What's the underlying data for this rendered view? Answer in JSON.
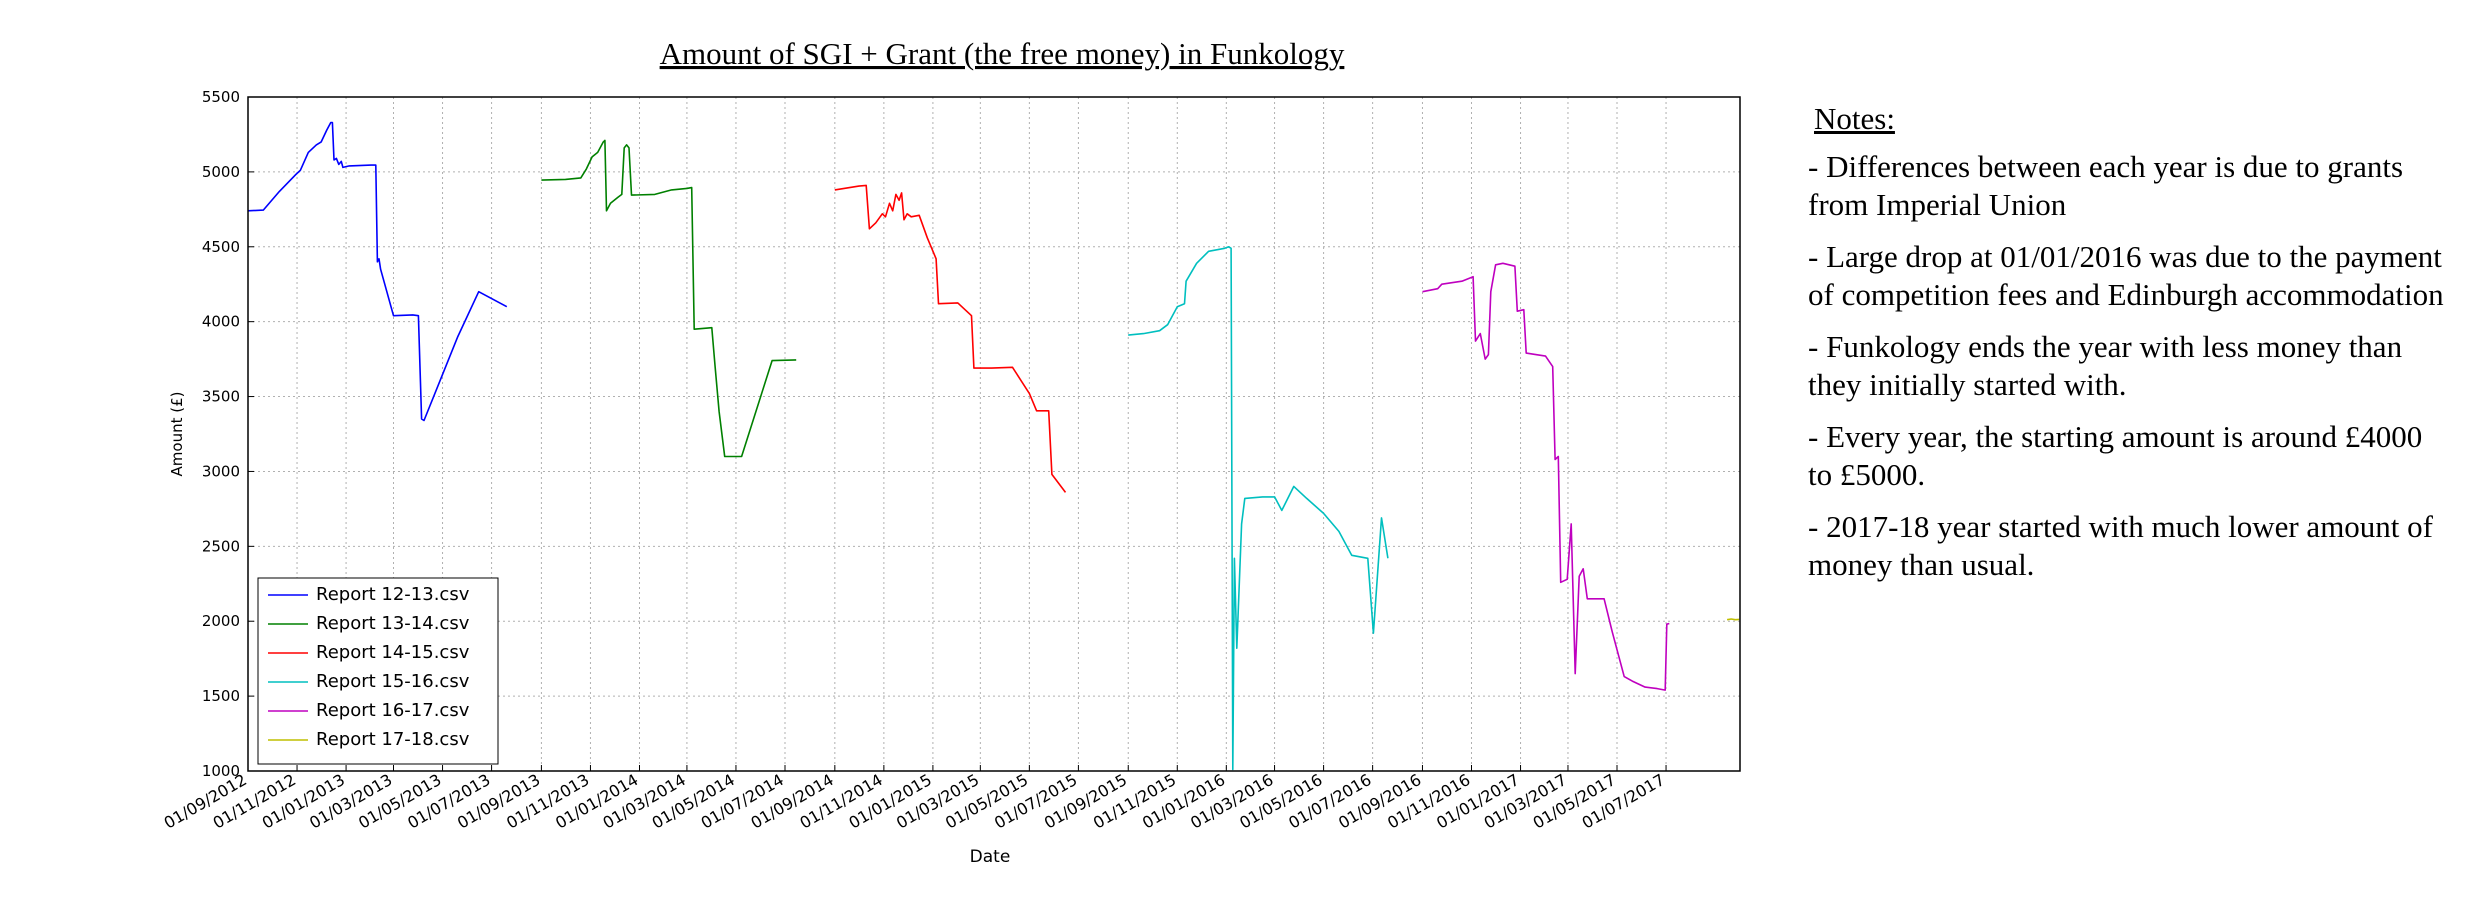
{
  "notes": {
    "heading": "Notes:",
    "items": [
      "- Differences between each year is due to grants from Imperial Union",
      "- Large drop at 01/01/2016 was due to the payment of competition fees and Edinburgh accommodation",
      "- Funkology ends the year with less money than they initially started with.",
      "- Every year, the starting amount is around £4000 to £5000.",
      "- 2017-18 year started with much lower amount of money than usual."
    ]
  },
  "chart_data": {
    "type": "line",
    "title": "Amount of SGI + Grant (the free money) in Funkology",
    "xlabel": "Date",
    "ylabel": "Amount (£)",
    "ylim": [
      1000,
      5500
    ],
    "yticks": [
      1000,
      1500,
      2000,
      2500,
      3000,
      3500,
      4000,
      4500,
      5000,
      5500
    ],
    "xlim": [
      "2012-09-01",
      "2017-10-01"
    ],
    "xticks": [
      {
        "date": "2012-09-01",
        "label": "01/09/2012"
      },
      {
        "date": "2012-11-01",
        "label": "01/11/2012"
      },
      {
        "date": "2013-01-01",
        "label": "01/01/2013"
      },
      {
        "date": "2013-03-01",
        "label": "01/03/2013"
      },
      {
        "date": "2013-05-01",
        "label": "01/05/2013"
      },
      {
        "date": "2013-07-01",
        "label": "01/07/2013"
      },
      {
        "date": "2013-09-01",
        "label": "01/09/2013"
      },
      {
        "date": "2013-11-01",
        "label": "01/11/2013"
      },
      {
        "date": "2014-01-01",
        "label": "01/01/2014"
      },
      {
        "date": "2014-03-01",
        "label": "01/03/2014"
      },
      {
        "date": "2014-05-01",
        "label": "01/05/2014"
      },
      {
        "date": "2014-07-01",
        "label": "01/07/2014"
      },
      {
        "date": "2014-09-01",
        "label": "01/09/2014"
      },
      {
        "date": "2014-11-01",
        "label": "01/11/2014"
      },
      {
        "date": "2015-01-01",
        "label": "01/01/2015"
      },
      {
        "date": "2015-03-01",
        "label": "01/03/2015"
      },
      {
        "date": "2015-05-01",
        "label": "01/05/2015"
      },
      {
        "date": "2015-07-01",
        "label": "01/07/2015"
      },
      {
        "date": "2015-09-01",
        "label": "01/09/2015"
      },
      {
        "date": "2015-11-01",
        "label": "01/11/2015"
      },
      {
        "date": "2016-01-01",
        "label": "01/01/2016"
      },
      {
        "date": "2016-03-01",
        "label": "01/03/2016"
      },
      {
        "date": "2016-05-01",
        "label": "01/05/2016"
      },
      {
        "date": "2016-07-01",
        "label": "01/07/2016"
      },
      {
        "date": "2016-09-01",
        "label": "01/09/2016"
      },
      {
        "date": "2016-11-01",
        "label": "01/11/2016"
      },
      {
        "date": "2017-01-01",
        "label": "01/01/2017"
      },
      {
        "date": "2017-03-01",
        "label": "01/03/2017"
      },
      {
        "date": "2017-05-01",
        "label": "01/05/2017"
      },
      {
        "date": "2017-07-01",
        "label": "01/07/2017"
      }
    ],
    "grid": true,
    "legend_position": "lower-left",
    "series": [
      {
        "name": "Report 12-13.csv",
        "color": "#0000ff",
        "points": [
          [
            "2012-09-01",
            4740
          ],
          [
            "2012-09-20",
            4745
          ],
          [
            "2012-10-10",
            4870
          ],
          [
            "2012-10-30",
            4980
          ],
          [
            "2012-11-05",
            5010
          ],
          [
            "2012-11-15",
            5130
          ],
          [
            "2012-11-25",
            5180
          ],
          [
            "2012-12-01",
            5200
          ],
          [
            "2012-12-08",
            5280
          ],
          [
            "2012-12-13",
            5330
          ],
          [
            "2012-12-15",
            5330
          ],
          [
            "2012-12-17",
            5080
          ],
          [
            "2012-12-20",
            5090
          ],
          [
            "2012-12-23",
            5050
          ],
          [
            "2012-12-26",
            5070
          ],
          [
            "2012-12-28",
            5030
          ],
          [
            "2013-01-05",
            5040
          ],
          [
            "2013-02-01",
            5045
          ],
          [
            "2013-02-07",
            5045
          ],
          [
            "2013-02-09",
            4400
          ],
          [
            "2013-02-11",
            4420
          ],
          [
            "2013-02-13",
            4350
          ],
          [
            "2013-03-01",
            4040
          ],
          [
            "2013-03-25",
            4045
          ],
          [
            "2013-04-01",
            4040
          ],
          [
            "2013-04-05",
            3350
          ],
          [
            "2013-04-08",
            3340
          ],
          [
            "2013-05-20",
            3900
          ],
          [
            "2013-06-15",
            4200
          ],
          [
            "2013-07-20",
            4100
          ]
        ]
      },
      {
        "name": "Report 13-14.csv",
        "color": "#008000",
        "points": [
          [
            "2013-09-01",
            4945
          ],
          [
            "2013-10-01",
            4950
          ],
          [
            "2013-10-20",
            4960
          ],
          [
            "2013-10-27",
            5020
          ],
          [
            "2013-11-03",
            5100
          ],
          [
            "2013-11-10",
            5130
          ],
          [
            "2013-11-17",
            5200
          ],
          [
            "2013-11-19",
            5210
          ],
          [
            "2013-11-21",
            4740
          ],
          [
            "2013-11-26",
            4790
          ],
          [
            "2013-12-05",
            4830
          ],
          [
            "2013-12-10",
            4850
          ],
          [
            "2013-12-13",
            5160
          ],
          [
            "2013-12-16",
            5180
          ],
          [
            "2013-12-19",
            5160
          ],
          [
            "2013-12-22",
            4845
          ],
          [
            "2014-01-20",
            4850
          ],
          [
            "2014-02-10",
            4880
          ],
          [
            "2014-03-01",
            4890
          ],
          [
            "2014-03-07",
            4895
          ],
          [
            "2014-03-10",
            3950
          ],
          [
            "2014-04-01",
            3960
          ],
          [
            "2014-04-05",
            3700
          ],
          [
            "2014-04-10",
            3400
          ],
          [
            "2014-04-17",
            3100
          ],
          [
            "2014-05-01",
            3100
          ],
          [
            "2014-05-08",
            3100
          ],
          [
            "2014-06-15",
            3740
          ],
          [
            "2014-07-15",
            3745
          ]
        ]
      },
      {
        "name": "Report 14-15.csv",
        "color": "#ff0000",
        "points": [
          [
            "2014-09-01",
            4880
          ],
          [
            "2014-10-01",
            4905
          ],
          [
            "2014-10-10",
            4910
          ],
          [
            "2014-10-14",
            4620
          ],
          [
            "2014-10-22",
            4660
          ],
          [
            "2014-10-30",
            4720
          ],
          [
            "2014-11-03",
            4700
          ],
          [
            "2014-11-08",
            4790
          ],
          [
            "2014-11-12",
            4740
          ],
          [
            "2014-11-16",
            4850
          ],
          [
            "2014-11-20",
            4810
          ],
          [
            "2014-11-23",
            4860
          ],
          [
            "2014-11-26",
            4680
          ],
          [
            "2014-11-30",
            4720
          ],
          [
            "2014-12-05",
            4700
          ],
          [
            "2014-12-15",
            4710
          ],
          [
            "2014-12-25",
            4560
          ],
          [
            "2015-01-05",
            4420
          ],
          [
            "2015-01-08",
            4120
          ],
          [
            "2015-02-01",
            4125
          ],
          [
            "2015-02-18",
            4040
          ],
          [
            "2015-02-21",
            3690
          ],
          [
            "2015-03-15",
            3690
          ],
          [
            "2015-04-10",
            3695
          ],
          [
            "2015-05-01",
            3520
          ],
          [
            "2015-05-10",
            3405
          ],
          [
            "2015-05-25",
            3405
          ],
          [
            "2015-05-29",
            2980
          ],
          [
            "2015-06-15",
            2860
          ]
        ]
      },
      {
        "name": "Report 15-16.csv",
        "color": "#00bfbf",
        "points": [
          [
            "2015-09-01",
            3910
          ],
          [
            "2015-09-20",
            3920
          ],
          [
            "2015-10-10",
            3940
          ],
          [
            "2015-10-20",
            3980
          ],
          [
            "2015-11-01",
            4100
          ],
          [
            "2015-11-10",
            4120
          ],
          [
            "2015-11-12",
            4270
          ],
          [
            "2015-11-25",
            4390
          ],
          [
            "2015-12-10",
            4470
          ],
          [
            "2015-12-30",
            4490
          ],
          [
            "2016-01-04",
            4500
          ],
          [
            "2016-01-07",
            4490
          ],
          [
            "2016-01-09",
            1010
          ],
          [
            "2016-01-11",
            2420
          ],
          [
            "2016-01-14",
            1820
          ],
          [
            "2016-01-20",
            2650
          ],
          [
            "2016-01-24",
            2820
          ],
          [
            "2016-02-15",
            2830
          ],
          [
            "2016-03-01",
            2830
          ],
          [
            "2016-03-10",
            2740
          ],
          [
            "2016-03-25",
            2900
          ],
          [
            "2016-04-10",
            2820
          ],
          [
            "2016-05-01",
            2720
          ],
          [
            "2016-05-20",
            2600
          ],
          [
            "2016-06-05",
            2440
          ],
          [
            "2016-06-25",
            2420
          ],
          [
            "2016-07-02",
            1920
          ],
          [
            "2016-07-12",
            2690
          ],
          [
            "2016-07-20",
            2420
          ]
        ]
      },
      {
        "name": "Report 16-17.csv",
        "color": "#bf00bf",
        "points": [
          [
            "2016-09-01",
            4200
          ],
          [
            "2016-09-20",
            4220
          ],
          [
            "2016-09-25",
            4250
          ],
          [
            "2016-10-20",
            4270
          ],
          [
            "2016-11-03",
            4300
          ],
          [
            "2016-11-06",
            3870
          ],
          [
            "2016-11-12",
            3920
          ],
          [
            "2016-11-18",
            3750
          ],
          [
            "2016-11-22",
            3780
          ],
          [
            "2016-11-25",
            4200
          ],
          [
            "2016-12-01",
            4380
          ],
          [
            "2016-12-10",
            4390
          ],
          [
            "2016-12-25",
            4370
          ],
          [
            "2016-12-28",
            4070
          ],
          [
            "2017-01-05",
            4080
          ],
          [
            "2017-01-08",
            3790
          ],
          [
            "2017-01-20",
            3780
          ],
          [
            "2017-02-01",
            3770
          ],
          [
            "2017-02-10",
            3700
          ],
          [
            "2017-02-13",
            3080
          ],
          [
            "2017-02-17",
            3100
          ],
          [
            "2017-02-20",
            2260
          ],
          [
            "2017-02-28",
            2280
          ],
          [
            "2017-03-05",
            2650
          ],
          [
            "2017-03-10",
            1650
          ],
          [
            "2017-03-15",
            2300
          ],
          [
            "2017-03-20",
            2350
          ],
          [
            "2017-03-25",
            2150
          ],
          [
            "2017-04-15",
            2150
          ],
          [
            "2017-04-25",
            1930
          ],
          [
            "2017-05-10",
            1630
          ],
          [
            "2017-05-20",
            1600
          ],
          [
            "2017-06-05",
            1560
          ],
          [
            "2017-06-20",
            1550
          ],
          [
            "2017-06-30",
            1540
          ],
          [
            "2017-07-02",
            1980
          ],
          [
            "2017-07-05",
            1985
          ]
        ]
      },
      {
        "name": "Report 17-18.csv",
        "color": "#bfbf00",
        "points": [
          [
            "2017-09-15",
            2010
          ],
          [
            "2017-09-20",
            2015
          ],
          [
            "2017-09-25",
            2010
          ],
          [
            "2017-09-30",
            2012
          ]
        ]
      }
    ]
  }
}
